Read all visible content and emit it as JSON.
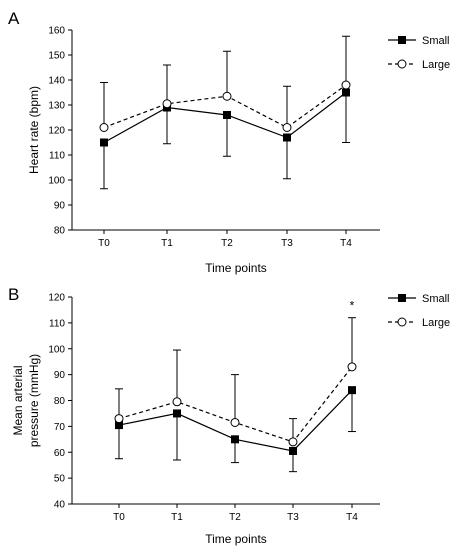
{
  "chart_data": [
    {
      "type": "line",
      "panel_label": "A",
      "categories": [
        "T0",
        "T1",
        "T2",
        "T3",
        "T4"
      ],
      "xlabel": "Time points",
      "ylabel": "Heart rate (bpm)",
      "ylim": [
        80,
        160
      ],
      "yticks": [
        80,
        90,
        100,
        110,
        120,
        130,
        140,
        150,
        160
      ],
      "legend_position": "top-right",
      "grid": false,
      "annotations": [],
      "series": [
        {
          "name": "Small",
          "marker": "filled-square",
          "line": "solid",
          "values": [
            115,
            129,
            126,
            117,
            135
          ],
          "error_plus": [
            0,
            0,
            0,
            0,
            0
          ],
          "error_minus": [
            18.5,
            14.5,
            16.5,
            16.5,
            20
          ]
        },
        {
          "name": "Large",
          "marker": "open-circle",
          "line": "dashed",
          "values": [
            121,
            130.5,
            133.5,
            121,
            138
          ],
          "error_plus": [
            18,
            15.5,
            18,
            16.5,
            19.5
          ],
          "error_minus": [
            0,
            0,
            0,
            0,
            0
          ]
        }
      ]
    },
    {
      "type": "line",
      "panel_label": "B",
      "categories": [
        "T0",
        "T1",
        "T2",
        "T3",
        "T4"
      ],
      "xlabel": "Time points",
      "ylabel_lines": [
        "Mean arterial",
        "pressure (mmHg)"
      ],
      "ylim": [
        40,
        120
      ],
      "yticks": [
        40,
        50,
        60,
        70,
        80,
        90,
        100,
        110,
        120
      ],
      "legend_position": "top-right",
      "grid": false,
      "annotations": [
        {
          "category": "T4",
          "text": "*"
        }
      ],
      "series": [
        {
          "name": "Small",
          "marker": "filled-square",
          "line": "solid",
          "values": [
            70.5,
            75,
            65,
            60.5,
            84
          ],
          "error_plus": [
            0,
            0,
            0,
            0,
            0
          ],
          "error_minus": [
            13,
            18,
            9,
            8,
            16
          ]
        },
        {
          "name": "Large",
          "marker": "open-circle",
          "line": "dashed",
          "values": [
            73,
            79.5,
            71.5,
            64,
            93
          ],
          "error_plus": [
            11.5,
            20,
            18.5,
            9,
            19
          ],
          "error_minus": [
            0,
            0,
            0,
            0,
            0
          ]
        }
      ]
    }
  ]
}
